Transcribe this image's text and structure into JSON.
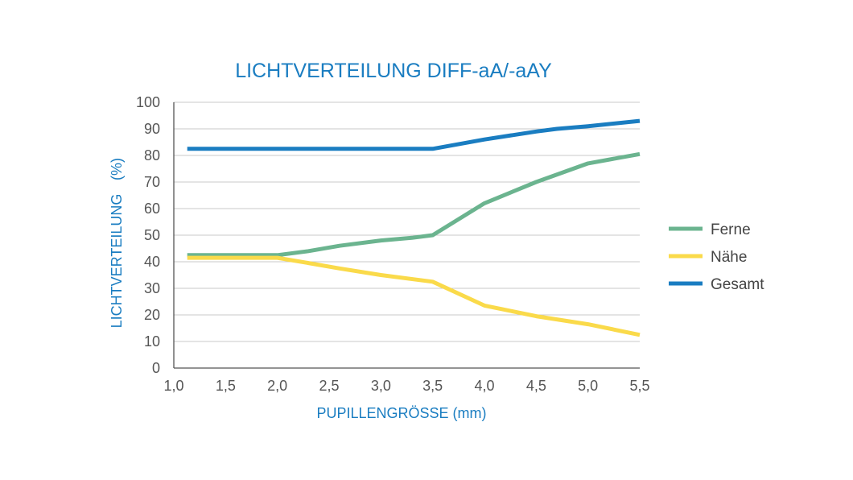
{
  "chart_data": {
    "type": "line",
    "title": "LICHTVERTEILUNG DIFF-aA/-aAY",
    "xlabel": "PUPILLENGRÖSSE (mm)",
    "ylabel": "LICHTVERTEILUNG",
    "ylabel_unit": "(%)",
    "xlim": [
      1.0,
      5.5
    ],
    "ylim": [
      0,
      100
    ],
    "x_ticks": [
      1.0,
      1.5,
      2.0,
      2.5,
      3.0,
      3.5,
      4.0,
      4.5,
      5.0,
      5.5
    ],
    "x_tick_labels": [
      "1,0",
      "1,5",
      "2,0",
      "2,5",
      "3,0",
      "3,5",
      "4,0",
      "4,5",
      "5,0",
      "5,5"
    ],
    "y_ticks": [
      0,
      10,
      20,
      30,
      40,
      50,
      60,
      70,
      80,
      90,
      100
    ],
    "y_tick_labels": [
      "0",
      "10",
      "20",
      "30",
      "40",
      "50",
      "60",
      "70",
      "80",
      "90",
      "100"
    ],
    "grid": "horizontal",
    "legend_position": "right",
    "series": [
      {
        "name": "Ferne",
        "color": "#6bb48f",
        "x": [
          1.13,
          2.0,
          2.3,
          2.6,
          3.0,
          3.3,
          3.5,
          4.0,
          4.5,
          5.0,
          5.5
        ],
        "y": [
          42.5,
          42.5,
          44,
          46,
          48,
          49,
          50,
          62,
          70,
          77,
          80.5
        ]
      },
      {
        "name": "Nähe",
        "color": "#fada4a",
        "x": [
          1.13,
          2.0,
          2.3,
          2.6,
          3.0,
          3.5,
          4.0,
          4.5,
          5.0,
          5.5
        ],
        "y": [
          41.5,
          41.5,
          39.5,
          37.5,
          35,
          32.5,
          23.5,
          19.5,
          16.5,
          12.5
        ]
      },
      {
        "name": "Gesamt",
        "color": "#1a7dc1",
        "x": [
          1.13,
          2.0,
          3.0,
          3.5,
          4.0,
          4.5,
          4.7,
          5.0,
          5.5
        ],
        "y": [
          82.5,
          82.5,
          82.5,
          82.5,
          86,
          89,
          90,
          91,
          93
        ]
      }
    ]
  }
}
